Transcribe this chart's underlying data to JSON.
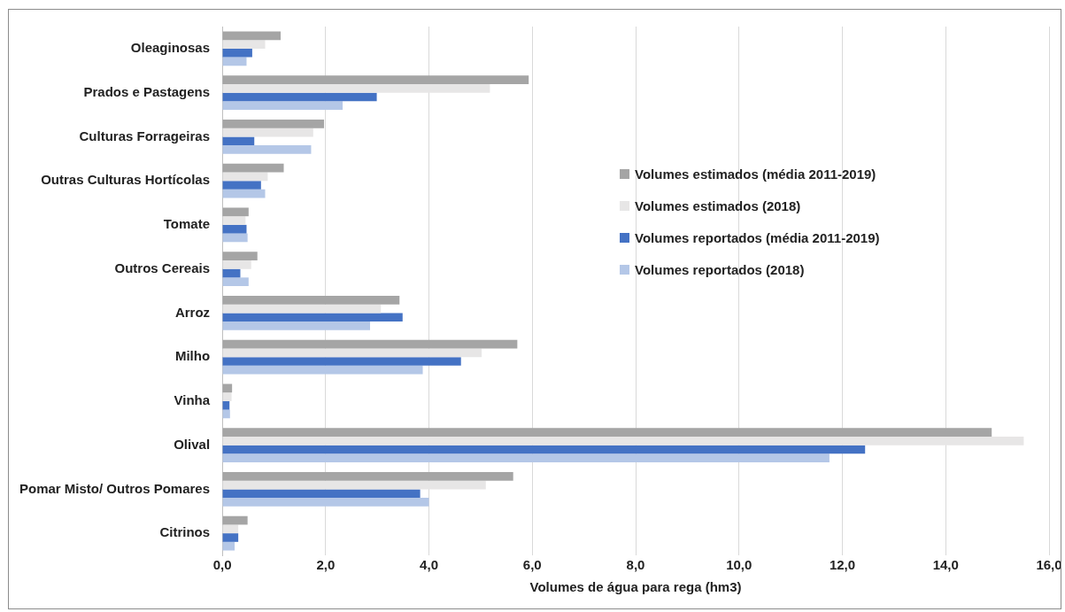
{
  "chart_data": {
    "type": "bar",
    "orientation": "horizontal",
    "xlabel": "Volumes de água para rega (hm3)",
    "categories": [
      "Oleaginosas",
      "Prados e Pastagens",
      "Culturas Forrageiras",
      "Outras Culturas Hortícolas",
      "Tomate",
      "Outros Cereais",
      "Arroz",
      "Milho",
      "Vinha",
      "Olival",
      "Pomar Misto/ Outros Pomares",
      "Citrinos"
    ],
    "series": [
      {
        "name": "Volumes estimados (média 2011-2019)",
        "color": "#a5a5a5",
        "values": [
          1.13,
          5.93,
          1.97,
          1.19,
          0.51,
          0.68,
          3.43,
          5.71,
          0.19,
          14.89,
          5.63,
          0.49
        ]
      },
      {
        "name": "Volumes estimados (2018)",
        "color": "#e7e6e6",
        "values": [
          0.83,
          5.18,
          1.76,
          0.88,
          0.45,
          0.56,
          3.07,
          5.02,
          0.18,
          15.51,
          5.1,
          0.31
        ]
      },
      {
        "name": "Volumes reportados (média 2011-2019)",
        "color": "#4472c4",
        "values": [
          0.58,
          2.99,
          0.62,
          0.75,
          0.47,
          0.35,
          3.49,
          4.62,
          0.14,
          12.44,
          3.83,
          0.31
        ]
      },
      {
        "name": "Volumes reportados (2018)",
        "color": "#b4c7e7",
        "values": [
          0.47,
          2.33,
          1.72,
          0.83,
          0.49,
          0.51,
          2.86,
          3.88,
          0.15,
          11.75,
          4.0,
          0.24
        ]
      }
    ],
    "xlim": [
      0,
      16
    ],
    "xticks": [
      {
        "value": 0,
        "label": "0,0"
      },
      {
        "value": 2,
        "label": "2,0"
      },
      {
        "value": 4,
        "label": "4,0"
      },
      {
        "value": 6,
        "label": "6,0"
      },
      {
        "value": 8,
        "label": "8,0"
      },
      {
        "value": 10,
        "label": "10,0"
      },
      {
        "value": 12,
        "label": "12,0"
      },
      {
        "value": 14,
        "label": "14,0"
      },
      {
        "value": 16,
        "label": "16,0"
      }
    ],
    "grid": "x",
    "legend": "right"
  }
}
